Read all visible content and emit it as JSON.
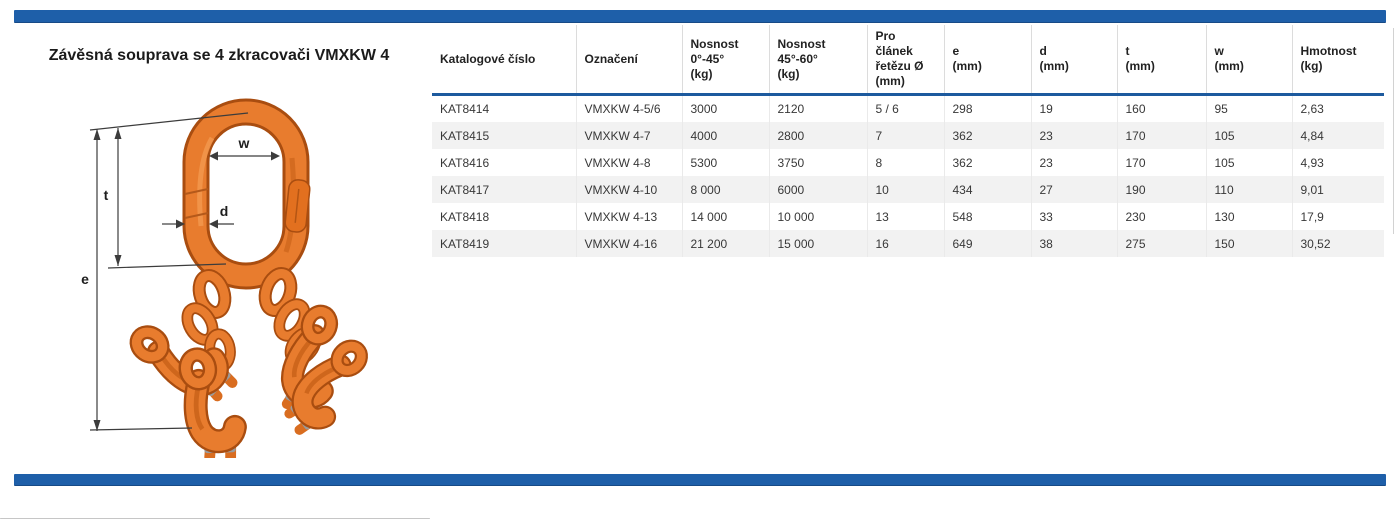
{
  "page": {
    "title": "Závěsná souprava se 4 zkracovači VMXKW 4",
    "colors": {
      "accent_blue": "#1e5fa9",
      "header_underline_blue": "#1d5a9e",
      "product_orange": "#e87c2e",
      "row_stripe_gray": "#f2f2f2"
    }
  },
  "illustration": {
    "description": "Orange master link with four clevis shortening grab hooks, dimension drawing",
    "dimension_labels": {
      "w": "w",
      "t": "t",
      "d": "d",
      "e": "e"
    }
  },
  "table": {
    "columns": [
      {
        "key": "catalog",
        "label": "Katalogové číslo"
      },
      {
        "key": "designation",
        "label": "Označení"
      },
      {
        "key": "wll_0_45",
        "label": "Nosnost\n0°-45°\n(kg)"
      },
      {
        "key": "wll_45_60",
        "label": "Nosnost\n45°-60°\n(kg)"
      },
      {
        "key": "chain_dia",
        "label": "Pro článek\nřetězu Ø\n(mm)"
      },
      {
        "key": "e",
        "label": "e\n(mm)"
      },
      {
        "key": "d",
        "label": "d\n(mm)"
      },
      {
        "key": "t",
        "label": "t\n(mm)"
      },
      {
        "key": "w",
        "label": "w\n(mm)"
      },
      {
        "key": "weight",
        "label": "Hmotnost\n(kg)"
      }
    ],
    "rows": [
      [
        "KAT8414",
        "VMXKW 4-5/6",
        "3000",
        "2120",
        "5 / 6",
        "298",
        "19",
        "160",
        "95",
        "2,63"
      ],
      [
        "KAT8415",
        "VMXKW 4-7",
        "4000",
        "2800",
        "7",
        "362",
        "23",
        "170",
        "105",
        "4,84"
      ],
      [
        "KAT8416",
        "VMXKW 4-8",
        "5300",
        "3750",
        "8",
        "362",
        "23",
        "170",
        "105",
        "4,93"
      ],
      [
        "KAT8417",
        "VMXKW 4-10",
        "8 000",
        "6000",
        "10",
        "434",
        "27",
        "190",
        "110",
        "9,01"
      ],
      [
        "KAT8418",
        "VMXKW 4-13",
        "14 000",
        "10 000",
        "13",
        "548",
        "33",
        "230",
        "130",
        "17,9"
      ],
      [
        "KAT8419",
        "VMXKW 4-16",
        "21 200",
        "15 000",
        "16",
        "649",
        "38",
        "275",
        "150",
        "30,52"
      ]
    ]
  }
}
